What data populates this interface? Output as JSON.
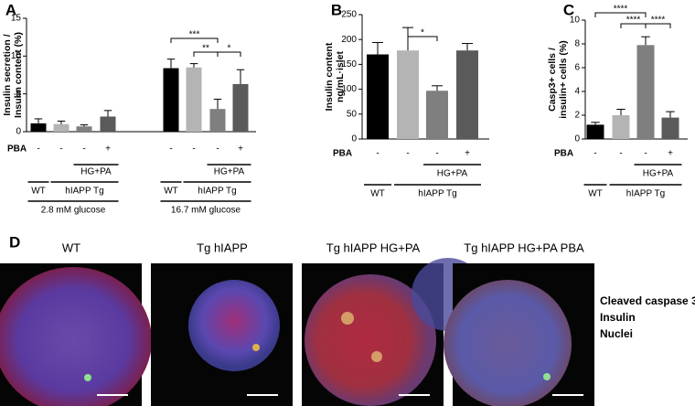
{
  "chart_data": [
    {
      "type": "bar",
      "panel": "A",
      "y_label": [
        "Insulin secretion  /",
        "Insulin content (%)"
      ],
      "ylim": [
        0,
        15
      ],
      "yticks": [
        0,
        5,
        10,
        15
      ],
      "colors": [
        "#000000",
        "#b4b4b4",
        "#7f7f7f",
        "#5a5a5a"
      ],
      "pba_label": "PBA",
      "groups": [
        {
          "label": "2.8 mM glucose",
          "values": [
            1.1,
            1.0,
            0.7,
            2.0
          ],
          "errors": [
            0.6,
            0.4,
            0.2,
            0.8
          ],
          "pba": [
            "-",
            "-",
            "-",
            "+"
          ],
          "treatment": "HG+PA",
          "genotypes": [
            "WT",
            "hIAPP Tg"
          ]
        },
        {
          "label": "16.7 mM glucose",
          "values": [
            8.4,
            8.5,
            3.0,
            6.3
          ],
          "errors": [
            1.2,
            0.5,
            1.3,
            1.9
          ],
          "pba": [
            "-",
            "-",
            "-",
            "+"
          ],
          "treatment": "HG+PA",
          "genotypes": [
            "WT",
            "hIAPP Tg"
          ]
        }
      ],
      "significance": [
        "***",
        "**",
        "*"
      ]
    },
    {
      "type": "bar",
      "panel": "B",
      "y_label": [
        "Insulin content",
        "ng/mL·islet"
      ],
      "ylim": [
        0,
        250
      ],
      "yticks": [
        0,
        50,
        100,
        150,
        200,
        250
      ],
      "colors": [
        "#000000",
        "#b4b4b4",
        "#7f7f7f",
        "#5a5a5a"
      ],
      "pba_label": "PBA",
      "groups": [
        {
          "values": [
            170,
            178,
            97,
            178
          ],
          "errors": [
            24,
            46,
            10,
            14
          ],
          "pba": [
            "-",
            "-",
            "-",
            "+"
          ],
          "treatment": "HG+PA",
          "genotypes": [
            "WT",
            "hIAPP Tg"
          ]
        }
      ],
      "significance": [
        "*"
      ]
    },
    {
      "type": "bar",
      "panel": "C",
      "y_label": [
        "Casp3+ cells /",
        "insulin+ cells (%)"
      ],
      "ylim": [
        0,
        10
      ],
      "yticks": [
        0,
        2,
        4,
        6,
        8,
        10
      ],
      "colors": [
        "#000000",
        "#b4b4b4",
        "#7f7f7f",
        "#5a5a5a"
      ],
      "pba_label": "PBA",
      "groups": [
        {
          "values": [
            1.2,
            2.0,
            7.9,
            1.8
          ],
          "errors": [
            0.2,
            0.5,
            0.7,
            0.5
          ],
          "pba": [
            "-",
            "-",
            "-",
            "+"
          ],
          "treatment": "HG+PA",
          "genotypes": [
            "WT",
            "hIAPP Tg"
          ]
        }
      ],
      "significance": [
        "****",
        "****",
        "****"
      ]
    }
  ],
  "panel_d": {
    "panel": "D",
    "titles": [
      "WT",
      "Tg hIAPP",
      "Tg hIAPP HG+PA",
      "Tg hIAPP HG+PA PBA"
    ],
    "legend": [
      {
        "label": "Cleaved caspase 3",
        "color": "#4fc64f"
      },
      {
        "label": "Insulin",
        "color": "#d01010"
      },
      {
        "label": "Nuclei",
        "color": "#3a6fd0"
      }
    ]
  }
}
